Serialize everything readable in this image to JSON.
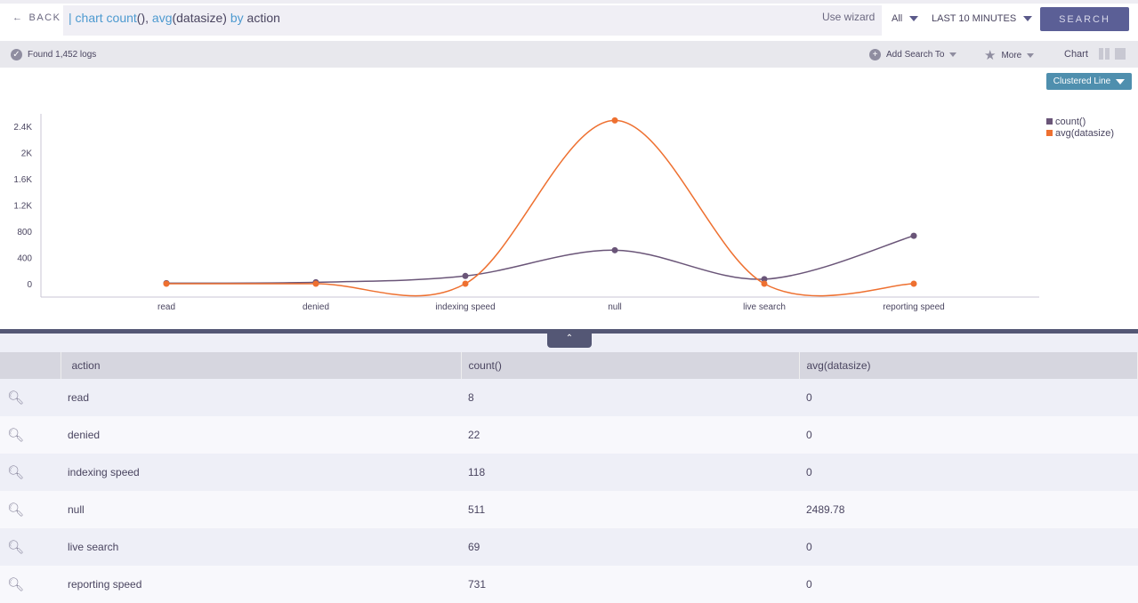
{
  "header": {
    "back_label": "BACK",
    "query": {
      "pipe": "| ",
      "p1": "chart count",
      "p2": "(), ",
      "p3": "avg",
      "p4": "(datasize) ",
      "p5": "by",
      "p6": " action"
    },
    "wizard_label": "Use wizard",
    "scope": "All",
    "time_range": "LAST 10 MINUTES",
    "search_label": "SEARCH"
  },
  "toolbar": {
    "found": "Found 1,452 logs",
    "add_search": "Add Search To",
    "more": "More",
    "chart_label": "Chart",
    "chart_type": "Clustered Line"
  },
  "chart_data": {
    "type": "line",
    "categories": [
      "read",
      "denied",
      "indexing speed",
      "null",
      "live search",
      "reporting speed"
    ],
    "series": [
      {
        "name": "count()",
        "color": "#6a5578",
        "values": [
          8,
          22,
          118,
          511,
          69,
          731
        ]
      },
      {
        "name": "avg(datasize)",
        "color": "#ee7030",
        "values": [
          0,
          0,
          0,
          2489.78,
          0,
          0
        ]
      }
    ],
    "yticks": [
      "0",
      "400",
      "800",
      "1.2K",
      "1.6K",
      "2K",
      "2.4K"
    ],
    "ylim": [
      0,
      2400
    ],
    "smooth": true,
    "legend": "top-right"
  },
  "table": {
    "columns": [
      "action",
      "count()",
      "avg(datasize)"
    ],
    "rows": [
      [
        "read",
        "8",
        "0"
      ],
      [
        "denied",
        "22",
        "0"
      ],
      [
        "indexing speed",
        "118",
        "0"
      ],
      [
        "null",
        "511",
        "2489.78"
      ],
      [
        "live search",
        "69",
        "0"
      ],
      [
        "reporting speed",
        "731",
        "0"
      ]
    ]
  }
}
